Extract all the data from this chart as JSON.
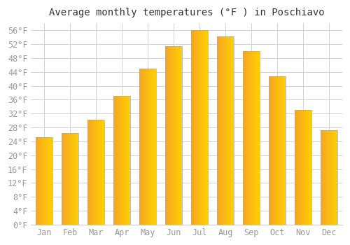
{
  "title": "Average monthly temperatures (°F ) in Poschiavo",
  "months": [
    "Jan",
    "Feb",
    "Mar",
    "Apr",
    "May",
    "Jun",
    "Jul",
    "Aug",
    "Sep",
    "Oct",
    "Nov",
    "Dec"
  ],
  "values": [
    25.2,
    26.4,
    30.2,
    37.0,
    45.0,
    51.3,
    56.1,
    54.3,
    50.0,
    42.8,
    33.1,
    27.3
  ],
  "bar_color_left": "#F5A623",
  "bar_color_right": "#FFD000",
  "bar_border_color": "#AAAAAA",
  "background_color": "#FFFFFF",
  "plot_bg_color": "#FFFFFF",
  "grid_color": "#CCCCCC",
  "title_color": "#333333",
  "tick_label_color": "#999999",
  "ylim": [
    0,
    58
  ],
  "yticks": [
    0,
    4,
    8,
    12,
    16,
    20,
    24,
    28,
    32,
    36,
    40,
    44,
    48,
    52,
    56
  ],
  "title_fontsize": 10,
  "tick_fontsize": 8.5,
  "bar_width": 0.65
}
